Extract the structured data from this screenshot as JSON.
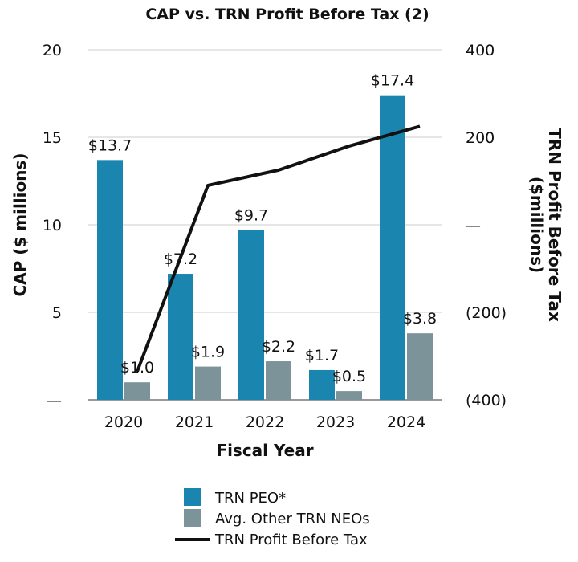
{
  "chart_data": {
    "type": "bar",
    "title": "CAP vs. TRN Profit Before Tax (2)",
    "xlabel": "Fiscal Year",
    "ylabel": "CAP ($ millions)",
    "y2label_line1": "TRN Profit Before Tax",
    "y2label_line2": "($millions)",
    "categories": [
      "2020",
      "2021",
      "2022",
      "2023",
      "2024"
    ],
    "ylim": [
      0,
      20
    ],
    "y_ticks": [
      {
        "value": 0,
        "label": "—"
      },
      {
        "value": 5,
        "label": "5"
      },
      {
        "value": 10,
        "label": "10"
      },
      {
        "value": 15,
        "label": "15"
      },
      {
        "value": 20,
        "label": "20"
      }
    ],
    "y2lim": [
      -400,
      400
    ],
    "y2_ticks": [
      {
        "value": -400,
        "label": "(400)"
      },
      {
        "value": -200,
        "label": "(200)"
      },
      {
        "value": 0,
        "label": "—"
      },
      {
        "value": 200,
        "label": "200"
      },
      {
        "value": 400,
        "label": "400"
      }
    ],
    "series": [
      {
        "name": "TRN PEO*",
        "kind": "bar",
        "color": "#1a86b0",
        "values": [
          13.7,
          7.2,
          9.7,
          1.7,
          17.4
        ],
        "labels": [
          "$13.7",
          "$7.2",
          "$9.7",
          "$1.7",
          "$17.4"
        ]
      },
      {
        "name": "Avg. Other TRN NEOs",
        "kind": "bar",
        "color": "#7b9399",
        "values": [
          1.0,
          1.9,
          2.2,
          0.5,
          3.8
        ],
        "labels": [
          "$1.0",
          "$1.9",
          "$2.2",
          "$0.5",
          "$3.8"
        ]
      },
      {
        "name": "TRN Profit Before Tax",
        "kind": "line",
        "axis": "right",
        "color": "#111111",
        "values": [
          -335,
          90,
          125,
          180,
          225
        ]
      }
    ],
    "grid": true,
    "legend_position": "bottom-center"
  }
}
